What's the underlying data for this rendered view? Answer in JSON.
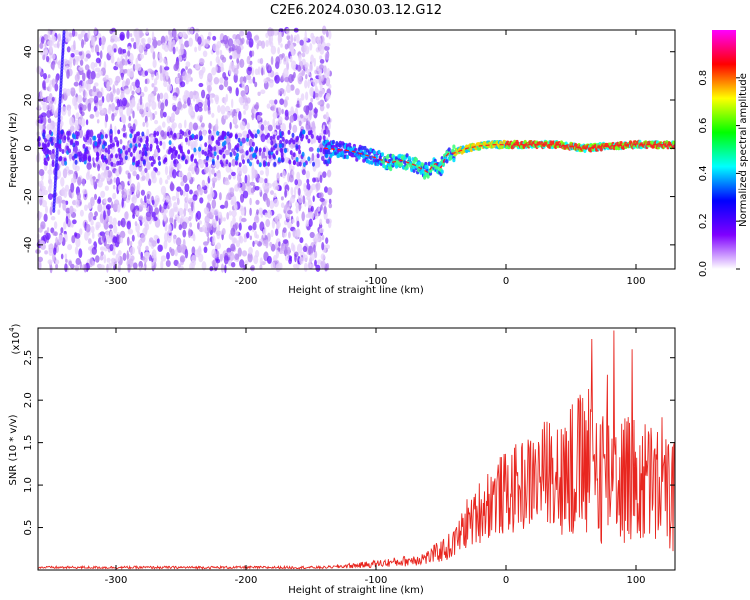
{
  "title": "C2E6.2024.030.03.12.G12",
  "chart_data": [
    {
      "type": "heatmap",
      "xlabel": "Height of straight line (km)",
      "ylabel": "Frequency (Hz)",
      "xlim": [
        -360,
        130
      ],
      "ylim": [
        -50,
        49
      ],
      "xticks": [
        -300,
        -200,
        -100,
        0,
        100
      ],
      "yticks": [
        -40,
        -20,
        0,
        20,
        40
      ],
      "colorbar": {
        "label": "Normalized spectral amplitude",
        "range": [
          0,
          1
        ],
        "ticks": [
          "0.0",
          "0.2",
          "0.4",
          "0.6",
          "0.8"
        ],
        "colors": [
          "#ffffff",
          "#7f00ff",
          "#0000ff",
          "#00ffff",
          "#00ff00",
          "#ffff00",
          "#ff0000",
          "#ff00ff"
        ]
      },
      "ridge": {
        "x": [
          -140,
          -120,
          -100,
          -90,
          -80,
          -70,
          -60,
          -55,
          -50,
          -45,
          -40,
          -30,
          -20,
          -10,
          0,
          20,
          40,
          60,
          80,
          100,
          130
        ],
        "freq_hz": [
          0,
          -1,
          -4,
          -6,
          -5,
          -7,
          -10,
          -6,
          -8,
          -2,
          -2,
          0,
          1,
          1.5,
          1.5,
          1.5,
          1.5,
          0,
          1,
          1.5,
          1.5
        ]
      },
      "noise_region_x": [
        -360,
        -135
      ],
      "grid": false
    },
    {
      "type": "line",
      "xlabel": "Height of straight line (km)",
      "ylabel": "SNR (10 * v/v)",
      "yscale_label": "(x10",
      "yscale_exp": "4",
      "color": "#e8261f",
      "xlim": [
        -360,
        130
      ],
      "ylim": [
        0,
        2.85
      ],
      "xticks": [
        -300,
        -200,
        -100,
        0,
        100
      ],
      "yticks": [
        0.5,
        1.0,
        1.5,
        2.0,
        2.5
      ],
      "ytick_labels": [
        "0.5",
        "1.0",
        "1.5",
        "2.0",
        "2.5"
      ],
      "envelope": {
        "x": [
          -360,
          -140,
          -110,
          -80,
          -60,
          -40,
          -30,
          -20,
          -10,
          0,
          20,
          40,
          50,
          60,
          70,
          80,
          90,
          100,
          110,
          120,
          130
        ],
        "y": [
          0.03,
          0.03,
          0.06,
          0.1,
          0.15,
          0.3,
          0.55,
          0.7,
          0.85,
          0.9,
          1.05,
          1.25,
          1.35,
          1.45,
          1.4,
          1.35,
          1.3,
          1.2,
          1.2,
          1.1,
          1.05
        ]
      },
      "peaks": [
        {
          "x": 66,
          "y": 2.72
        },
        {
          "x": 83,
          "y": 2.82
        },
        {
          "x": 78,
          "y": 2.3
        },
        {
          "x": 93,
          "y": 1.75
        },
        {
          "x": 120,
          "y": 1.8
        },
        {
          "x": 51,
          "y": 1.95
        },
        {
          "x": 97,
          "y": 2.6
        },
        {
          "x": 116,
          "y": 1.3
        },
        {
          "x": -25,
          "y": 0.75
        },
        {
          "x": -40,
          "y": 0.45
        }
      ]
    }
  ]
}
